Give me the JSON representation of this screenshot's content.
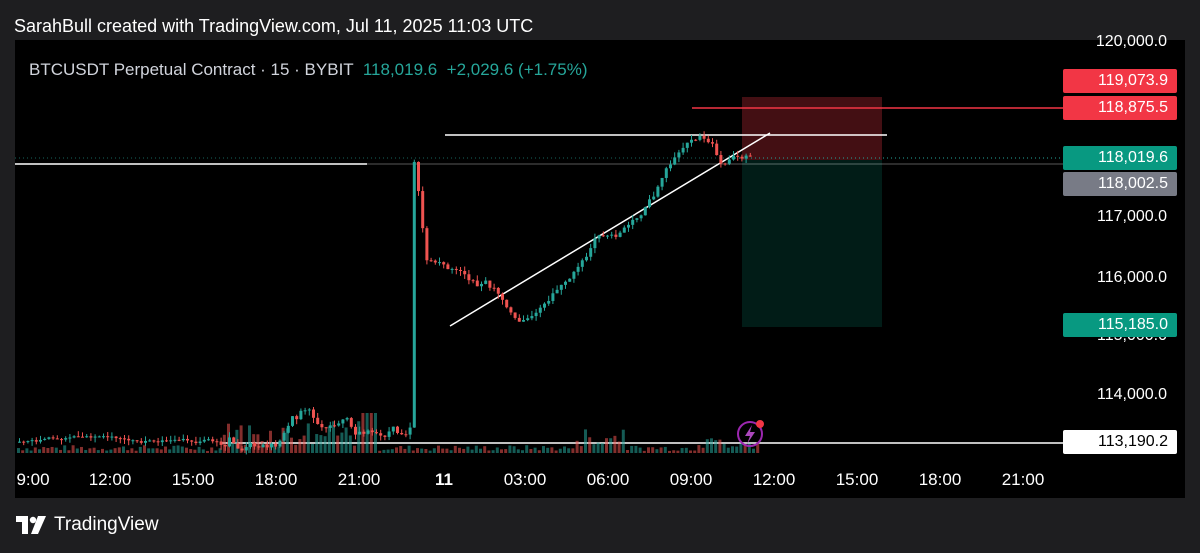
{
  "caption": "SarahBull created with TradingView.com, Jul 11, 2025 11:03 UTC",
  "symbol": {
    "title": "BTCUSDT Perpetual Contract · 15 · BYBIT",
    "last": "118,019.6",
    "change": "+2,029.6 (+1.75%)"
  },
  "price_axis": [
    {
      "label": "120,000.0",
      "value": 120000
    },
    {
      "label": "117,000.0",
      "value": 117000
    },
    {
      "label": "116,000.0",
      "value": 116000
    },
    {
      "label": "115,000.0",
      "value": 115000
    },
    {
      "label": "114,000.0",
      "value": 114000
    }
  ],
  "badges": [
    {
      "label": "119,073.9",
      "value": 119073.9,
      "bg": "#f23645",
      "fg": "#ffffff"
    },
    {
      "label": "118,875.5",
      "value": 118875.5,
      "bg": "#f23645",
      "fg": "#ffffff"
    },
    {
      "label": "118,019.6",
      "value": 118019.6,
      "bg": "#089981",
      "fg": "#ffffff"
    },
    {
      "label": "118,002.5",
      "value": 118002.5,
      "bg": "#787b86",
      "fg": "#ffffff"
    },
    {
      "label": "115,185.0",
      "value": 115185.0,
      "bg": "#089981",
      "fg": "#ffffff"
    },
    {
      "label": "113,190.2",
      "value": 113190.2,
      "bg": "#ffffff",
      "fg": "#000000"
    }
  ],
  "time_axis": [
    {
      "label": "9:00",
      "bold": false
    },
    {
      "label": "12:00",
      "bold": false
    },
    {
      "label": "15:00",
      "bold": false
    },
    {
      "label": "18:00",
      "bold": false
    },
    {
      "label": "21:00",
      "bold": false
    },
    {
      "label": "11",
      "bold": true
    },
    {
      "label": "03:00",
      "bold": false
    },
    {
      "label": "06:00",
      "bold": false
    },
    {
      "label": "09:00",
      "bold": false
    },
    {
      "label": "12:00",
      "bold": false
    },
    {
      "label": "15:00",
      "bold": false
    },
    {
      "label": "18:00",
      "bold": false
    },
    {
      "label": "21:00",
      "bold": false
    }
  ],
  "footer": {
    "brand": "TradingView"
  },
  "colors": {
    "up": "#26a69a",
    "down": "#ef5350",
    "bg": "#000000",
    "line": "#ffffff"
  },
  "icons": {
    "lightning": "lightning-icon",
    "logo": "tradingview-logo-icon"
  }
}
